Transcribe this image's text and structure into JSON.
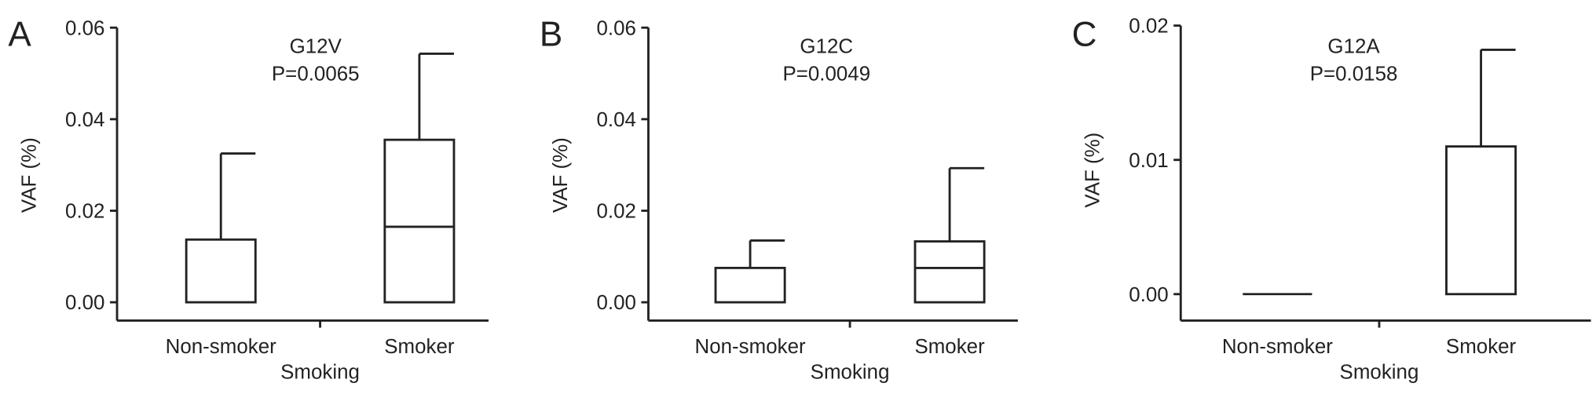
{
  "chart_data": [
    {
      "type": "box",
      "panel_label": "A",
      "title": "G12V",
      "subtitle": "P=0.0065",
      "xlabel": "Smoking",
      "ylabel": "VAF (%)",
      "ylim": [
        0,
        0.06
      ],
      "yticks": [
        "0.00",
        "0.02",
        "0.04",
        "0.06"
      ],
      "ytick_values": [
        0,
        0.02,
        0.04,
        0.06
      ],
      "categories": [
        "Non-smoker",
        "Smoker"
      ],
      "boxes": [
        {
          "min": 0,
          "q1": 0,
          "median": 0,
          "q3": 0.0137,
          "max": 0.0325
        },
        {
          "min": 0,
          "q1": 0,
          "median": 0.0165,
          "q3": 0.0355,
          "max": 0.0543
        }
      ],
      "grid": false
    },
    {
      "type": "box",
      "panel_label": "B",
      "title": "G12C",
      "subtitle": "P=0.0049",
      "xlabel": "Smoking",
      "ylabel": "VAF (%)",
      "ylim": [
        0,
        0.06
      ],
      "yticks": [
        "0.00",
        "0.02",
        "0.04",
        "0.06"
      ],
      "ytick_values": [
        0,
        0.02,
        0.04,
        0.06
      ],
      "categories": [
        "Non-smoker",
        "Smoker"
      ],
      "boxes": [
        {
          "min": 0,
          "q1": 0,
          "median": 0,
          "q3": 0.0075,
          "max": 0.0135
        },
        {
          "min": 0,
          "q1": 0,
          "median": 0.0075,
          "q3": 0.0133,
          "max": 0.0293
        }
      ],
      "grid": false
    },
    {
      "type": "box",
      "panel_label": "C",
      "title": "G12A",
      "subtitle": "P=0.0158",
      "xlabel": "Smoking",
      "ylabel": "VAF (%)",
      "ylim": [
        0,
        0.02
      ],
      "yticks": [
        "0.00",
        "0.01",
        "0.02"
      ],
      "ytick_values": [
        0,
        0.01,
        0.02
      ],
      "categories": [
        "Non-smoker",
        "Smoker"
      ],
      "boxes": [
        {
          "min": 0,
          "q1": 0,
          "median": 0,
          "q3": 0,
          "max": 0
        },
        {
          "min": 0,
          "q1": 0,
          "median": 0,
          "q3": 0.011,
          "max": 0.0182
        }
      ],
      "grid": false
    }
  ]
}
